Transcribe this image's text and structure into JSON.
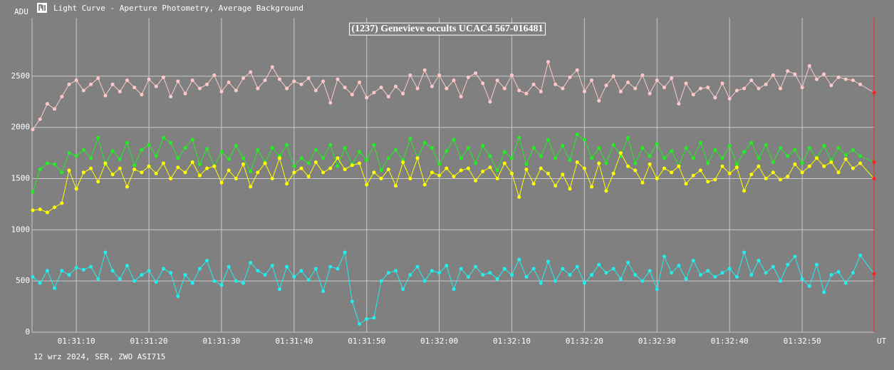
{
  "chart_data": {
    "type": "line",
    "window_title": "Light Curve - Aperture Photometry, Average Background",
    "title": "(1237) Genevieve occults UCAC4 567-016481",
    "ylabel": "ADU",
    "xlabel": "UT",
    "footer": "12 wrz 2024, SER, ZWO ASI715",
    "grid": true,
    "xlim": [
      3.9,
      120
    ],
    "ylim": [
      0,
      3070
    ],
    "yticks": [
      0,
      500,
      1000,
      1500,
      2000,
      2500
    ],
    "xticks": [
      {
        "value": 10,
        "label": "01:31:10"
      },
      {
        "value": 20,
        "label": "01:31:20"
      },
      {
        "value": 30,
        "label": "01:31:30"
      },
      {
        "value": 40,
        "label": "01:31:40"
      },
      {
        "value": 50,
        "label": "01:31:50"
      },
      {
        "value": 60,
        "label": "01:32:00"
      },
      {
        "value": 70,
        "label": "01:32:10"
      },
      {
        "value": 80,
        "label": "01:32:20"
      },
      {
        "value": 90,
        "label": "01:32:30"
      },
      {
        "value": 100,
        "label": "01:32:40"
      },
      {
        "value": 110,
        "label": "01:32:50"
      }
    ],
    "cursor_x": 119.9,
    "cursor_color": "#ff2020",
    "x": [
      4,
      5,
      6,
      7,
      8,
      9,
      10,
      11,
      12,
      13,
      14,
      15,
      16,
      17,
      18,
      19,
      20,
      21,
      22,
      23,
      24,
      25,
      26,
      27,
      28,
      29,
      30,
      31,
      32,
      33,
      34,
      35,
      36,
      37,
      38,
      39,
      40,
      41,
      42,
      43,
      44,
      45,
      46,
      47,
      48,
      49,
      50,
      51,
      52,
      53,
      54,
      55,
      56,
      57,
      58,
      59,
      60,
      61,
      62,
      63,
      64,
      65,
      66,
      67,
      68,
      69,
      70,
      71,
      72,
      73,
      74,
      75,
      76,
      77,
      78,
      79,
      80,
      81,
      82,
      83,
      84,
      85,
      86,
      87,
      88,
      89,
      90,
      91,
      92,
      93,
      94,
      95,
      96,
      97,
      98,
      99,
      100,
      101,
      102,
      103,
      104,
      105,
      106,
      107,
      108,
      109,
      110,
      111,
      112,
      113,
      114,
      115,
      116,
      117,
      118,
      119.9
    ],
    "series": [
      {
        "color": "#ffc8c8",
        "values": [
          1980,
          2080,
          2230,
          2180,
          2300,
          2420,
          2460,
          2360,
          2420,
          2480,
          2310,
          2420,
          2350,
          2460,
          2390,
          2320,
          2470,
          2400,
          2490,
          2300,
          2450,
          2330,
          2460,
          2380,
          2420,
          2510,
          2350,
          2440,
          2360,
          2480,
          2540,
          2380,
          2460,
          2590,
          2470,
          2380,
          2450,
          2420,
          2480,
          2360,
          2450,
          2240,
          2470,
          2390,
          2320,
          2440,
          2290,
          2340,
          2390,
          2300,
          2400,
          2330,
          2510,
          2380,
          2560,
          2400,
          2510,
          2380,
          2460,
          2300,
          2490,
          2530,
          2430,
          2250,
          2460,
          2380,
          2510,
          2360,
          2330,
          2420,
          2350,
          2640,
          2420,
          2380,
          2490,
          2560,
          2350,
          2460,
          2260,
          2410,
          2500,
          2350,
          2440,
          2380,
          2510,
          2330,
          2460,
          2390,
          2480,
          2230,
          2430,
          2320,
          2380,
          2390,
          2290,
          2430,
          2280,
          2360,
          2380,
          2460,
          2380,
          2420,
          2510,
          2380,
          2550,
          2520,
          2390,
          2600,
          2470,
          2520,
          2410,
          2490,
          2470,
          2460,
          2420,
          2340
        ]
      },
      {
        "color": "#22ee22",
        "values": [
          1370,
          1590,
          1650,
          1640,
          1560,
          1750,
          1720,
          1780,
          1700,
          1900,
          1640,
          1770,
          1690,
          1850,
          1630,
          1780,
          1830,
          1720,
          1900,
          1850,
          1700,
          1800,
          1880,
          1640,
          1790,
          1620,
          1760,
          1690,
          1820,
          1700,
          1570,
          1780,
          1660,
          1800,
          1720,
          1830,
          1620,
          1700,
          1650,
          1780,
          1700,
          1830,
          1620,
          1800,
          1640,
          1760,
          1680,
          1830,
          1580,
          1700,
          1780,
          1680,
          1890,
          1700,
          1850,
          1800,
          1640,
          1770,
          1880,
          1700,
          1800,
          1650,
          1820,
          1720,
          1580,
          1760,
          1700,
          1900,
          1640,
          1800,
          1720,
          1880,
          1700,
          1820,
          1680,
          1930,
          1880,
          1700,
          1800,
          1650,
          1830,
          1720,
          1900,
          1650,
          1800,
          1720,
          1840,
          1700,
          1770,
          1620,
          1800,
          1700,
          1850,
          1650,
          1780,
          1700,
          1820,
          1640,
          1760,
          1850,
          1700,
          1830,
          1660,
          1800,
          1720,
          1780,
          1650,
          1800,
          1700,
          1820,
          1680,
          1800,
          1730,
          1780,
          1720,
          1660
        ]
      },
      {
        "color": "#ffff00",
        "values": [
          1190,
          1200,
          1170,
          1220,
          1260,
          1580,
          1400,
          1560,
          1600,
          1470,
          1650,
          1540,
          1600,
          1420,
          1590,
          1560,
          1620,
          1550,
          1650,
          1500,
          1610,
          1560,
          1660,
          1530,
          1600,
          1620,
          1460,
          1580,
          1500,
          1640,
          1420,
          1560,
          1650,
          1500,
          1700,
          1450,
          1560,
          1600,
          1520,
          1660,
          1560,
          1600,
          1700,
          1590,
          1630,
          1650,
          1440,
          1560,
          1500,
          1590,
          1430,
          1660,
          1500,
          1700,
          1440,
          1560,
          1530,
          1600,
          1520,
          1580,
          1600,
          1480,
          1570,
          1610,
          1500,
          1650,
          1550,
          1320,
          1590,
          1450,
          1600,
          1550,
          1430,
          1540,
          1400,
          1660,
          1600,
          1420,
          1650,
          1380,
          1550,
          1750,
          1620,
          1580,
          1460,
          1640,
          1500,
          1600,
          1560,
          1620,
          1450,
          1530,
          1580,
          1470,
          1490,
          1620,
          1550,
          1610,
          1380,
          1540,
          1620,
          1500,
          1560,
          1490,
          1520,
          1640,
          1560,
          1620,
          1700,
          1620,
          1660,
          1560,
          1690,
          1600,
          1650,
          1500
        ]
      },
      {
        "color": "#22eeee",
        "values": [
          540,
          480,
          600,
          430,
          600,
          560,
          630,
          610,
          640,
          520,
          780,
          600,
          520,
          650,
          500,
          560,
          600,
          490,
          620,
          580,
          350,
          560,
          480,
          620,
          700,
          500,
          460,
          640,
          500,
          480,
          680,
          600,
          560,
          650,
          420,
          640,
          540,
          600,
          510,
          620,
          400,
          640,
          620,
          780,
          300,
          80,
          130,
          140,
          500,
          580,
          600,
          420,
          560,
          640,
          500,
          600,
          580,
          650,
          420,
          620,
          540,
          640,
          560,
          580,
          520,
          620,
          560,
          710,
          540,
          620,
          480,
          690,
          500,
          620,
          560,
          640,
          480,
          560,
          660,
          580,
          620,
          520,
          680,
          560,
          500,
          600,
          420,
          740,
          580,
          650,
          520,
          700,
          560,
          600,
          540,
          580,
          620,
          540,
          780,
          560,
          700,
          580,
          640,
          500,
          660,
          740,
          520,
          450,
          660,
          390,
          560,
          590,
          480,
          580,
          750,
          570
        ]
      }
    ]
  }
}
